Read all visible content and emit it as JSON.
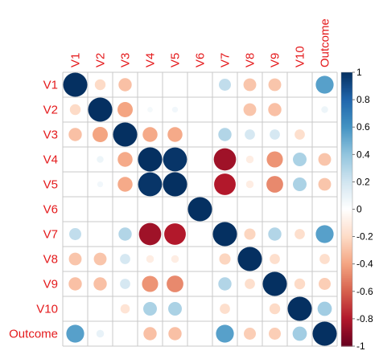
{
  "chart_data": {
    "type": "heatmap",
    "variables": [
      "V1",
      "V2",
      "V3",
      "V4",
      "V5",
      "V6",
      "V7",
      "V8",
      "V9",
      "V10",
      "Outcome"
    ],
    "matrix": [
      [
        1.0,
        -0.2,
        -0.3,
        0.0,
        0.0,
        0.0,
        0.25,
        -0.28,
        -0.28,
        0.0,
        0.55
      ],
      [
        -0.2,
        1.0,
        -0.4,
        0.05,
        0.06,
        0.0,
        0.0,
        -0.28,
        -0.3,
        0.0,
        0.08
      ],
      [
        -0.3,
        -0.4,
        1.0,
        -0.38,
        -0.38,
        0.0,
        0.3,
        0.18,
        0.18,
        -0.18,
        0.0
      ],
      [
        0.0,
        0.08,
        -0.38,
        1.0,
        0.98,
        0.0,
        -0.85,
        -0.1,
        -0.45,
        0.32,
        -0.28
      ],
      [
        0.0,
        0.06,
        -0.38,
        0.98,
        1.0,
        0.0,
        -0.8,
        -0.1,
        -0.48,
        0.32,
        -0.28
      ],
      [
        0.0,
        0.0,
        0.0,
        0.0,
        0.0,
        1.0,
        0.0,
        0.0,
        0.0,
        0.0,
        0.0
      ],
      [
        0.25,
        0.0,
        0.3,
        -0.85,
        -0.8,
        0.0,
        1.0,
        -0.22,
        0.3,
        -0.18,
        0.55
      ],
      [
        -0.28,
        -0.28,
        0.18,
        -0.1,
        -0.1,
        0.0,
        -0.22,
        1.0,
        -0.18,
        0.0,
        -0.18
      ],
      [
        -0.3,
        -0.3,
        0.18,
        -0.45,
        -0.48,
        0.0,
        0.3,
        -0.18,
        1.0,
        -0.2,
        -0.25
      ],
      [
        0.0,
        0.0,
        -0.15,
        0.32,
        0.32,
        0.0,
        -0.18,
        0.0,
        -0.2,
        1.0,
        0.35
      ],
      [
        0.55,
        0.1,
        0.0,
        -0.3,
        -0.3,
        0.0,
        0.55,
        -0.25,
        -0.25,
        0.35,
        1.0
      ]
    ],
    "colorbar": {
      "ticks": [
        1,
        0.8,
        0.6,
        0.4,
        0.2,
        0,
        -0.2,
        -0.4,
        -0.6,
        -0.8,
        -1
      ],
      "range": [
        -1,
        1
      ],
      "colors": [
        "#67001F",
        "#B2182B",
        "#D6604D",
        "#F4A582",
        "#FDDBC7",
        "#FFFFFF",
        "#D1E5F0",
        "#92C5DE",
        "#4393C3",
        "#2166AC",
        "#053061"
      ]
    },
    "label_color": "#e41a1c",
    "grid": true
  }
}
